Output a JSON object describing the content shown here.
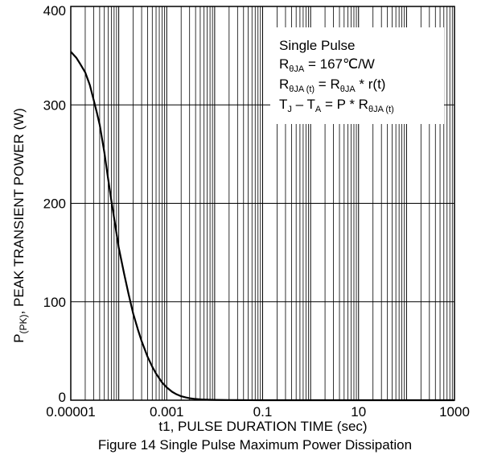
{
  "chart_data": {
    "type": "line",
    "x_scale": "log",
    "xlim": [
      1e-05,
      1000
    ],
    "ylim": [
      0,
      400
    ],
    "grid": true,
    "x_ticks": [
      {
        "value": 1e-05,
        "label": "0.00001"
      },
      {
        "value": 0.001,
        "label": "0.001"
      },
      {
        "value": 0.1,
        "label": "0.1"
      },
      {
        "value": 10,
        "label": "10"
      },
      {
        "value": 1000,
        "label": "1000"
      }
    ],
    "y_ticks": [
      {
        "value": 0,
        "label": "0"
      },
      {
        "value": 100,
        "label": "100"
      },
      {
        "value": 200,
        "label": "200"
      },
      {
        "value": 300,
        "label": "300"
      },
      {
        "value": 400,
        "label": "400"
      }
    ],
    "xlabel": "t1, PULSE DURATION TIME (sec)",
    "ylabel": {
      "main": "P",
      "sub": "(PK)",
      "rest": ",  PEAK TRANSIENT POWER (W)"
    },
    "caption": "Figure 14 Single Pulse Maximum Power Dissipation",
    "annotation": {
      "title": "Single Pulse",
      "line1": {
        "r": "R",
        "sub": "θJA",
        "rest": " = 167℃/W"
      },
      "line2": {
        "r1": "R",
        "sub1": "θJA (t)",
        "mid": " = R",
        "sub2": "θJA",
        "rest": " * r(t)"
      },
      "line3": {
        "t1": "T",
        "sub1": "J",
        "mid1": " – T",
        "sub2": "A",
        "mid2": " = P * R",
        "sub3": "θJA (t)"
      }
    },
    "series": [
      {
        "color": "#000000",
        "x": [
          1e-05,
          1.3e-05,
          1.6e-05,
          2e-05,
          2.5e-05,
          3e-05,
          3.5e-05,
          4e-05,
          5e-05,
          6e-05,
          7e-05,
          8e-05,
          0.0001,
          0.00013,
          0.00016,
          0.0002,
          0.00025,
          0.0003,
          0.0004,
          0.0005,
          0.0006,
          0.0008,
          0.001,
          0.0013,
          0.0016,
          0.002,
          0.0025,
          0.003,
          0.004,
          0.005,
          0.006,
          0.008,
          0.01,
          0.015,
          0.02,
          0.03,
          0.05,
          0.1,
          1,
          10,
          1000
        ],
        "y": [
          354,
          348,
          341,
          333,
          320,
          305,
          292,
          280,
          252,
          225,
          203,
          185,
          155,
          128,
          108,
          88,
          72,
          60,
          44,
          34,
          27,
          18,
          13,
          8.5,
          6,
          4,
          2.8,
          2,
          1.2,
          0.8,
          0.6,
          0.4,
          0.3,
          0.2,
          0.15,
          0.1,
          0.05,
          0.02,
          0,
          0,
          0
        ]
      }
    ]
  }
}
